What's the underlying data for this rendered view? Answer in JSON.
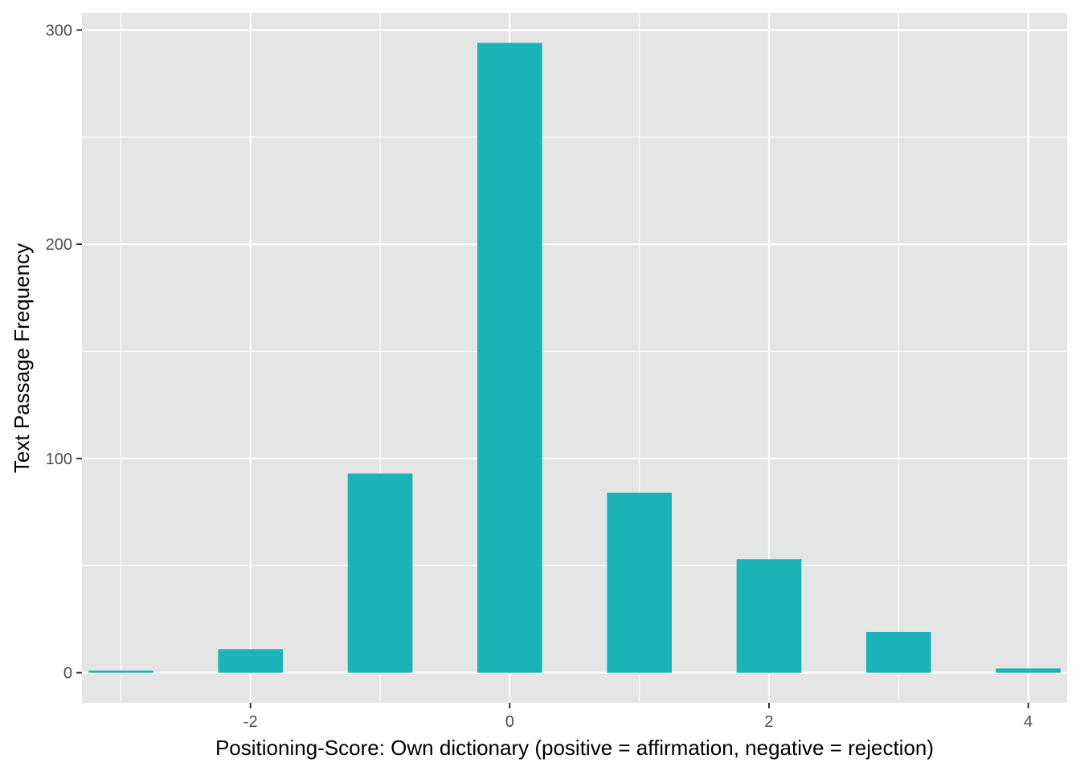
{
  "chart_data": {
    "type": "bar",
    "title": "",
    "xlabel": "Positioning-Score: Own dictionary (positive = affirmation, negative = rejection)",
    "ylabel": "Text Passage Frequency",
    "x": [
      -3,
      -2,
      -1,
      0,
      1,
      2,
      3,
      4
    ],
    "values": [
      1,
      11,
      93,
      294,
      84,
      53,
      19,
      2
    ],
    "bar_width": 0.5,
    "xlim": [
      -3.3,
      4.3
    ],
    "ylim": [
      -14,
      308
    ],
    "x_major_ticks": [
      -2,
      0,
      2,
      4
    ],
    "x_tick_labels": [
      "-2",
      "0",
      "2",
      "4"
    ],
    "x_minor_ticks": [
      -3,
      -1,
      1,
      3
    ],
    "y_major_ticks": [
      0,
      100,
      200,
      300
    ],
    "y_tick_labels": [
      "0",
      "100",
      "200",
      "300"
    ],
    "y_minor_ticks": [
      50,
      150,
      250
    ],
    "grid": true,
    "legend": "none",
    "colors": {
      "bar": "#19B3B8",
      "panel": "#E5E5E5",
      "grid": "#FFFFFF",
      "tick_text": "#4D4D4D",
      "tick_mark": "#333333",
      "title_text": "#000000"
    }
  }
}
